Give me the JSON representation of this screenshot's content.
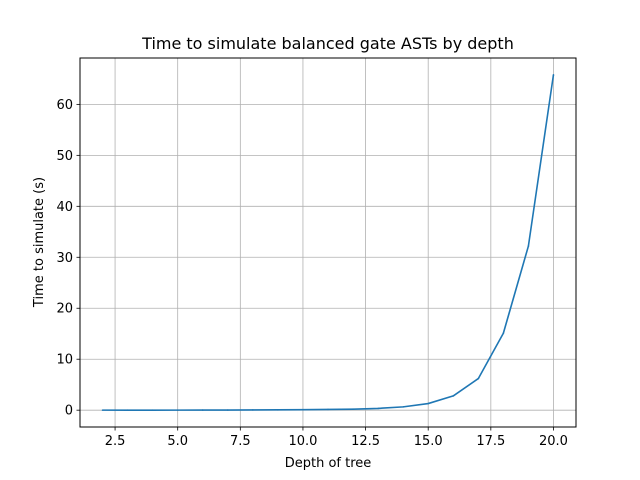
{
  "chart_data": {
    "type": "line",
    "title": "Time to simulate balanced gate ASTs by depth",
    "xlabel": "Depth of tree",
    "ylabel": "Time to simulate (s)",
    "xlim": [
      1.1,
      20.9
    ],
    "ylim": [
      -3.3,
      69.1
    ],
    "grid": true,
    "xticks": [
      2.5,
      5.0,
      7.5,
      10.0,
      12.5,
      15.0,
      17.5,
      20.0
    ],
    "xtick_labels": [
      "2.5",
      "5.0",
      "7.5",
      "10.0",
      "12.5",
      "15.0",
      "17.5",
      "20.0"
    ],
    "yticks": [
      0,
      10,
      20,
      30,
      40,
      50,
      60
    ],
    "ytick_labels": [
      "0",
      "10",
      "20",
      "30",
      "40",
      "50",
      "60"
    ],
    "series": [
      {
        "color": "#1f77b4",
        "x": [
          2,
          3,
          4,
          5,
          6,
          7,
          8,
          9,
          10,
          11,
          12,
          13,
          14,
          15,
          16,
          17,
          18,
          19,
          20
        ],
        "values": [
          0.01,
          0.0,
          0.0,
          0.01,
          0.02,
          0.03,
          0.05,
          0.07,
          0.1,
          0.15,
          0.2,
          0.35,
          0.65,
          1.3,
          2.8,
          6.2,
          15.1,
          32.2,
          65.8
        ]
      }
    ]
  }
}
